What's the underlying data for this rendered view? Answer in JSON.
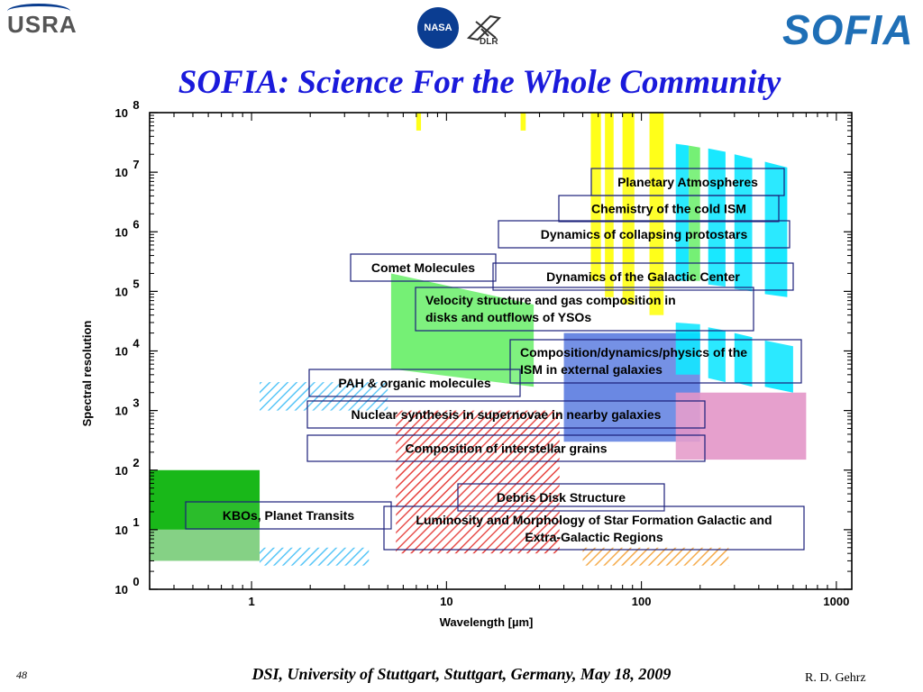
{
  "header": {
    "left_logo": "USRA",
    "center_logo_1": "NASA",
    "center_logo_2": "DLR",
    "right_logo": "SOFIA"
  },
  "title": "SOFIA: Science For the Whole Community",
  "footer": {
    "page_number": "48",
    "venue": "DSI, University of Stuttgart, Stuttgart, Germany, May 18, 2009",
    "author": "R.  D. Gehrz"
  },
  "chart_data": {
    "type": "area",
    "xlabel": "Wavelength [µm]",
    "ylabel": "Spectral resolution",
    "x_scale": "log",
    "y_scale": "log",
    "xlim": [
      0.3,
      1200
    ],
    "ylim": [
      1,
      100000000
    ],
    "x_ticks": [
      "1",
      "10",
      "100",
      "1000"
    ],
    "y_ticks": [
      {
        "base": "10",
        "exp": "0"
      },
      {
        "base": "10",
        "exp": "1"
      },
      {
        "base": "10",
        "exp": "2"
      },
      {
        "base": "10",
        "exp": "3"
      },
      {
        "base": "10",
        "exp": "4"
      },
      {
        "base": "10",
        "exp": "5"
      },
      {
        "base": "10",
        "exp": "6"
      },
      {
        "base": "10",
        "exp": "7"
      },
      {
        "base": "10",
        "exp": "8"
      }
    ],
    "regions": [
      {
        "kind": "rect",
        "x": [
          0.3,
          1.1
        ],
        "y": [
          100,
          10
        ],
        "fill": "#00b000"
      },
      {
        "kind": "rect",
        "x": [
          0.3,
          1.1
        ],
        "y": [
          10,
          3
        ],
        "fill": "#78cc78"
      },
      {
        "kind": "rect",
        "x": [
          1.1,
          5.0
        ],
        "y": [
          3000,
          1000
        ],
        "fill": "#4fc3f7",
        "pattern": "hatch"
      },
      {
        "kind": "rect",
        "x": [
          1.1,
          4.0
        ],
        "y": [
          5,
          2.5
        ],
        "fill": "#4fc3f7",
        "pattern": "hatch"
      },
      {
        "kind": "rect",
        "x": [
          5.5,
          38
        ],
        "y": [
          1000,
          4
        ],
        "fill": "#e53935",
        "pattern": "hatch"
      },
      {
        "kind": "rect",
        "x": [
          50,
          280
        ],
        "y": [
          5,
          2.5
        ],
        "fill": "#f4a742",
        "pattern": "hatch"
      },
      {
        "kind": "rect",
        "x": [
          40,
          200
        ],
        "y": [
          20000,
          300
        ],
        "fill": "#5a7be0"
      },
      {
        "kind": "rect",
        "x": [
          150,
          700
        ],
        "y": [
          2000,
          150
        ],
        "fill": "#e396c8"
      },
      {
        "kind": "poly",
        "pts": [
          [
            5.2,
            200000
          ],
          [
            28,
            60000
          ],
          [
            28,
            2500
          ],
          [
            5.2,
            5000
          ]
        ],
        "fill": "#66ee66"
      },
      {
        "kind": "rect",
        "x": [
          55,
          62
        ],
        "y": [
          100000000,
          150000
        ],
        "fill": "#ffff00"
      },
      {
        "kind": "rect",
        "x": [
          65,
          72
        ],
        "y": [
          100000000,
          80000
        ],
        "fill": "#ffff00"
      },
      {
        "kind": "rect",
        "x": [
          80,
          92
        ],
        "y": [
          100000000,
          60000
        ],
        "fill": "#ffff00"
      },
      {
        "kind": "rect",
        "x": [
          110,
          130
        ],
        "y": [
          100000000,
          40000
        ],
        "fill": "#ffff00"
      },
      {
        "kind": "rect",
        "x": [
          7,
          7.4
        ],
        "y": [
          100000000,
          50000000
        ],
        "fill": "#ffff00"
      },
      {
        "kind": "rect",
        "x": [
          24,
          25.5
        ],
        "y": [
          100000000,
          50000000
        ],
        "fill": "#ffff00"
      },
      {
        "kind": "poly",
        "pts": [
          [
            150,
            30000000
          ],
          [
            175,
            28000000
          ],
          [
            175,
            150000
          ],
          [
            150,
            150000
          ]
        ],
        "fill": "#00e5ff"
      },
      {
        "kind": "poly",
        "pts": [
          [
            175,
            28000000
          ],
          [
            200,
            26000000
          ],
          [
            200,
            150000
          ],
          [
            175,
            150000
          ]
        ],
        "fill": "#66ee66"
      },
      {
        "kind": "poly",
        "pts": [
          [
            220,
            25000000
          ],
          [
            270,
            22000000
          ],
          [
            270,
            120000
          ],
          [
            220,
            130000
          ]
        ],
        "fill": "#00e5ff"
      },
      {
        "kind": "poly",
        "pts": [
          [
            300,
            20000000
          ],
          [
            370,
            17000000
          ],
          [
            370,
            100000
          ],
          [
            300,
            110000
          ]
        ],
        "fill": "#00e5ff"
      },
      {
        "kind": "poly",
        "pts": [
          [
            430,
            15000000
          ],
          [
            560,
            12000000
          ],
          [
            560,
            80000
          ],
          [
            430,
            90000
          ]
        ],
        "fill": "#00e5ff"
      },
      {
        "kind": "poly",
        "pts": [
          [
            150,
            30000
          ],
          [
            200,
            28000
          ],
          [
            200,
            4000
          ],
          [
            150,
            4000
          ]
        ],
        "fill": "#00e5ff"
      },
      {
        "kind": "poly",
        "pts": [
          [
            220,
            25000
          ],
          [
            270,
            22000
          ],
          [
            270,
            3000
          ],
          [
            220,
            3500
          ]
        ],
        "fill": "#00e5ff"
      },
      {
        "kind": "poly",
        "pts": [
          [
            300,
            20000
          ],
          [
            370,
            17000
          ],
          [
            370,
            2500
          ],
          [
            300,
            3000
          ]
        ],
        "fill": "#00e5ff"
      },
      {
        "kind": "poly",
        "pts": [
          [
            430,
            15000
          ],
          [
            600,
            12000
          ],
          [
            600,
            2000
          ],
          [
            430,
            2500
          ]
        ],
        "fill": "#00e5ff"
      }
    ],
    "annotations": [
      {
        "text": "Planetary Atmospheres"
      },
      {
        "text": "Chemistry of the cold ISM"
      },
      {
        "text": "Dynamics of collapsing protostars"
      },
      {
        "text": "Comet Molecules"
      },
      {
        "text": "Dynamics of the Galactic Center"
      },
      {
        "text": "Velocity structure and gas composition in",
        "text2": "disks and outflows of YSOs"
      },
      {
        "text": "Composition/dynamics/physics of the",
        "text2": "ISM in external galaxies"
      },
      {
        "text": "PAH & organic molecules"
      },
      {
        "text": "Nuclear synthesis in supernovae in nearby galaxies"
      },
      {
        "text": "Composition of interstellar grains"
      },
      {
        "text": "Debris Disk Structure"
      },
      {
        "text": "KBOs, Planet Transits"
      },
      {
        "text": "Luminosity and Morphology of Star Formation Galactic and",
        "text2": "Extra-Galactic Regions"
      }
    ]
  }
}
